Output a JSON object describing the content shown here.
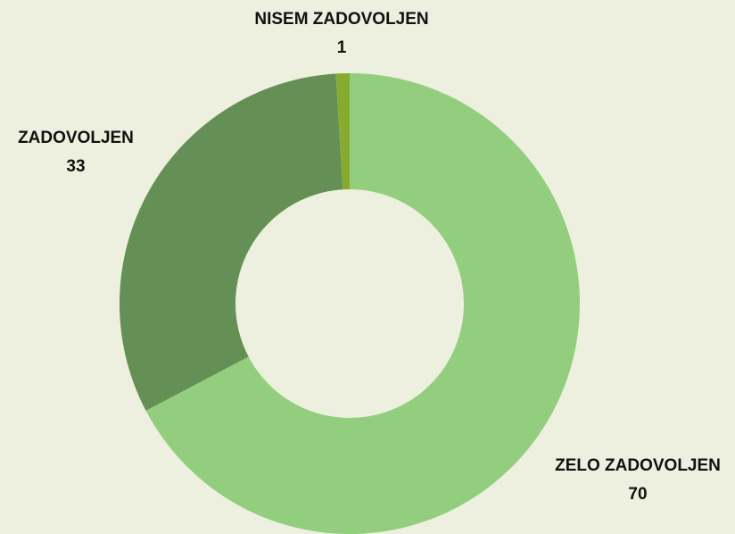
{
  "chart_data": {
    "type": "donut",
    "categories": [
      "ZELO ZADOVOLJEN",
      "ZADOVOLJEN",
      "NISEM ZADOVOLJEN"
    ],
    "values": [
      70,
      33,
      1
    ],
    "colors": [
      "#93ce7f",
      "#648f55",
      "#86ab2f"
    ]
  }
}
